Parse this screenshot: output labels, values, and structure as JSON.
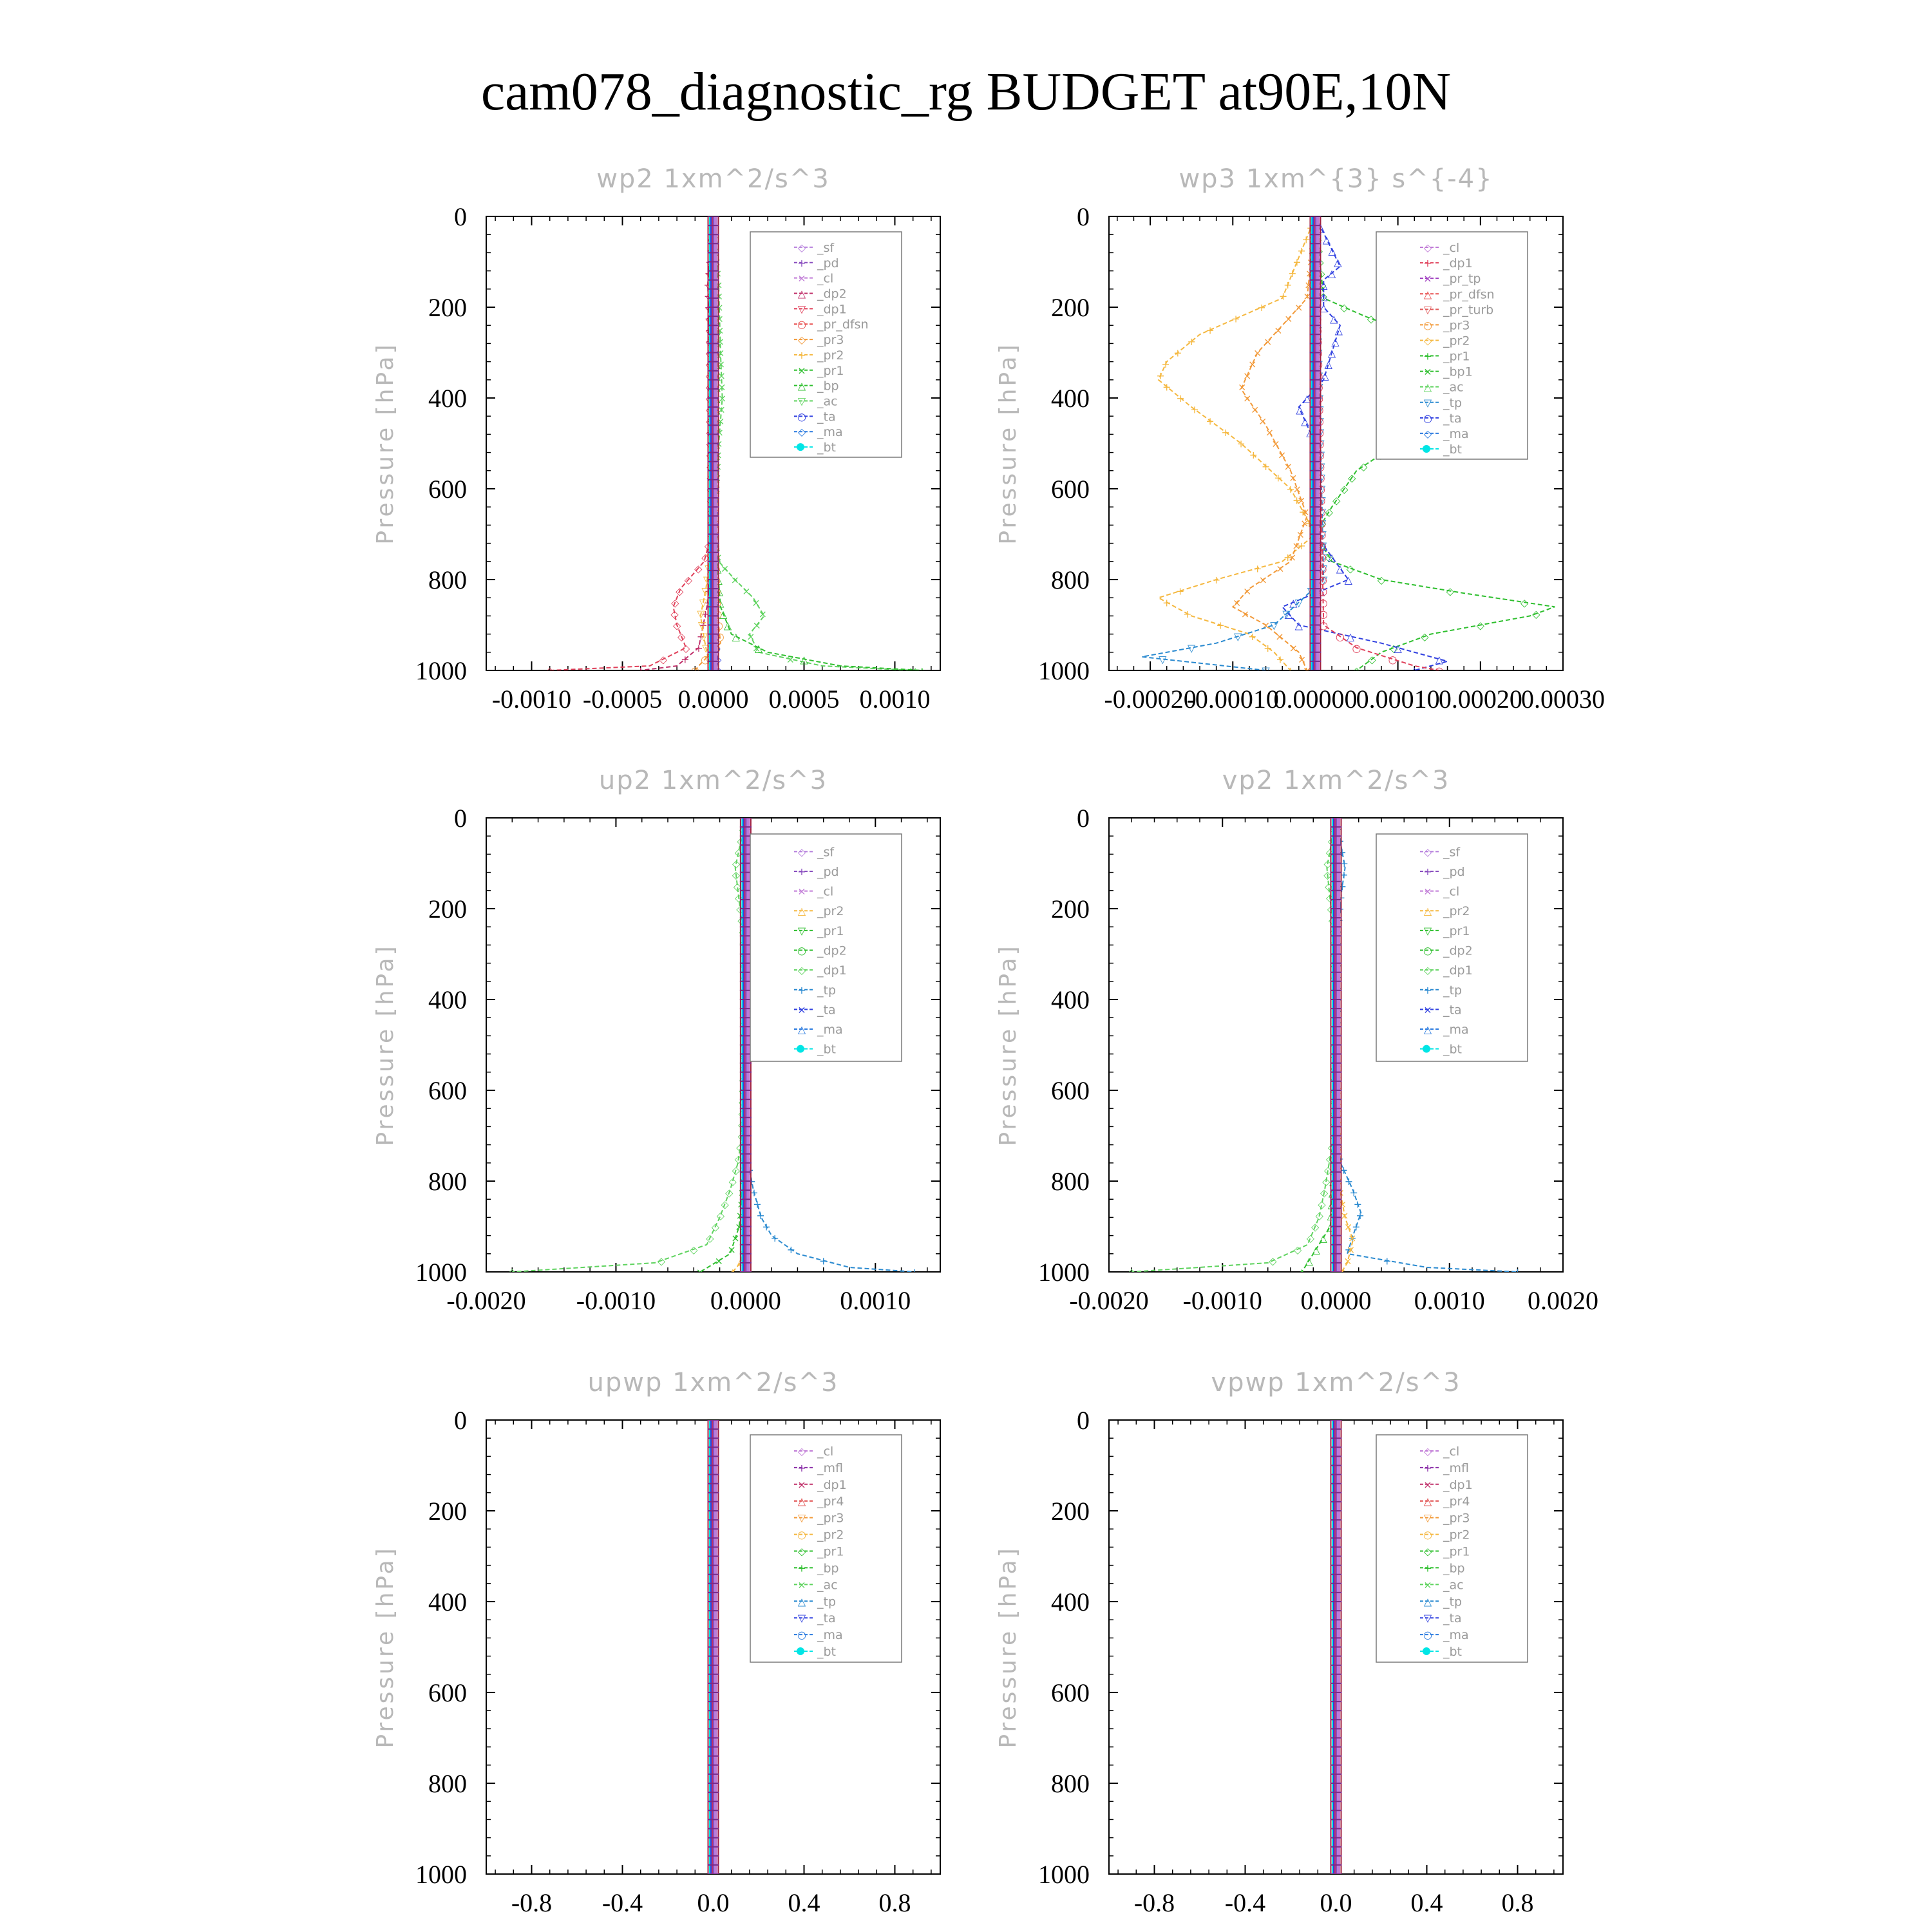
{
  "title": "cam078_diagnostic_rg  BUDGET at90E,10N",
  "colors": {
    "sf": "#b57edc",
    "pd": "#8a4fbf",
    "cl": "#c07ad6",
    "dp2": "#c0306a",
    "dp1": "#e0405a",
    "pr_dfsn": "#e85050",
    "pr3": "#f29a3a",
    "pr2": "#f5b840",
    "pr1": "#2fbf2f",
    "bp": "#2fbf2f",
    "ac": "#5fd35f",
    "tp": "#2a8ad0",
    "ta": "#3040e0",
    "ma": "#2a7adf",
    "bt": "#00e5e5",
    "mfl": "#8a2fa8",
    "pr4": "#e04848",
    "pr_tp": "#a040c0",
    "pr_turb": "#e05a5a",
    "frame": "#000000"
  },
  "chart_data": [
    {
      "type": "line",
      "title": "wp2   1xm^2/s^3",
      "ylabel": "Pressure [hPa]",
      "ylim": [
        1000,
        0
      ],
      "yticks": [
        "0",
        "200",
        "400",
        "600",
        "800",
        "1000"
      ],
      "xlim": [
        -0.00125,
        0.00125
      ],
      "xticks": [
        "-0.0010",
        "-0.0005",
        "0.0000",
        "0.0005",
        "0.0010"
      ],
      "xtick_values": [
        -0.001,
        -0.0005,
        0,
        0.0005,
        0.001
      ],
      "legend": [
        "_sf",
        "_pd",
        "_cl",
        "_dp2",
        "_dp1",
        "_pr_dfsn",
        "_pr3",
        "_pr2",
        "_pr1",
        "_bp",
        "_ac",
        "_ta",
        "_ma",
        "_bt"
      ],
      "legend_colors": [
        "sf",
        "pd",
        "cl",
        "dp2",
        "dp1",
        "pr_dfsn",
        "pr3",
        "pr2",
        "pr1",
        "bp",
        "ac",
        "ta",
        "ma",
        "bt"
      ],
      "series": [
        {
          "color": "dp1",
          "p": [
            0,
            150,
            400,
            700,
            760,
            820,
            860,
            900,
            950,
            990,
            1000
          ],
          "v": [
            0,
            -2e-05,
            -2e-05,
            -1e-05,
            -5e-05,
            -0.00018,
            -0.00022,
            -0.0002,
            -0.00015,
            -0.00035,
            -0.0009
          ]
        },
        {
          "color": "dp2",
          "p": [
            0,
            150,
            400,
            700,
            850,
            950,
            990,
            1000
          ],
          "v": [
            0,
            -3e-05,
            -1e-05,
            0,
            -3e-05,
            -8e-05,
            -0.0002,
            -0.0004
          ]
        },
        {
          "color": "ac",
          "p": [
            0,
            150,
            300,
            400,
            500,
            700,
            760,
            800,
            840,
            880,
            920,
            960,
            990,
            1000
          ],
          "v": [
            0,
            3e-05,
            4e-05,
            5e-05,
            3e-05,
            1e-05,
            3e-05,
            0.00012,
            0.00022,
            0.00028,
            0.0002,
            0.00025,
            0.0006,
            0.0011
          ]
        },
        {
          "color": "bp",
          "p": [
            0,
            300,
            700,
            860,
            920,
            960,
            990,
            1000
          ],
          "v": [
            0,
            2e-05,
            1e-05,
            4e-05,
            0.0001,
            0.0003,
            0.0007,
            0.00115
          ]
        },
        {
          "color": "pr2",
          "p": [
            0,
            700,
            820,
            880,
            930,
            970,
            1000
          ],
          "v": [
            0,
            0,
            -4e-05,
            -7e-05,
            -5e-05,
            -3e-05,
            -1e-05
          ]
        },
        {
          "color": "pr3",
          "p": [
            0,
            700,
            860,
            940,
            990,
            1000
          ],
          "v": [
            0,
            1e-05,
            2e-05,
            4e-05,
            -8e-05,
            -0.0001
          ]
        },
        {
          "color": "ta",
          "p": [
            0,
            900,
            960,
            1000
          ],
          "v": [
            0,
            1e-05,
            2e-05,
            3e-05
          ]
        }
      ]
    },
    {
      "type": "line",
      "title": "wp3   1xm^{3} s^{-4}",
      "ylabel": "Pressure [hPa]",
      "ylim": [
        1000,
        0
      ],
      "yticks": [
        "0",
        "200",
        "400",
        "600",
        "800",
        "1000"
      ],
      "xlim": [
        -0.00025,
        0.0003
      ],
      "xticks": [
        "-0.00020",
        "-0.00010",
        "0.00000",
        "0.00010",
        "0.00020",
        "0.00030"
      ],
      "xtick_values": [
        -0.0002,
        -0.0001,
        0,
        0.0001,
        0.0002,
        0.0003
      ],
      "legend": [
        "_cl",
        "_dp1",
        "_pr_tp",
        "_pr_dfsn",
        "_pr_turb",
        "_pr3",
        "_pr2",
        "_pr1",
        "_bp1",
        "_ac",
        "_tp",
        "_ta",
        "_ma",
        "_bt"
      ],
      "legend_colors": [
        "cl",
        "dp1",
        "pr_tp",
        "pr_dfsn",
        "pr_turb",
        "pr3",
        "pr2",
        "pr1",
        "bp",
        "ac",
        "tp",
        "ta",
        "ma",
        "bt"
      ],
      "series": [
        {
          "color": "bp",
          "p": [
            0,
            180,
            220,
            260,
            300,
            340,
            390,
            440,
            500,
            560,
            640,
            700,
            760,
            800,
            830,
            860,
            880,
            920,
            960,
            1000
          ],
          "v": [
            0,
            1e-05,
            6e-05,
            0.00012,
            0.00018,
            0.00023,
            0.00025,
            0.00018,
            0.0001,
            5e-05,
            2e-05,
            0,
            2e-05,
            8e-05,
            0.00018,
            0.00029,
            0.00026,
            0.00014,
            8e-05,
            5e-05
          ]
        },
        {
          "color": "pr2",
          "p": [
            0,
            180,
            220,
            260,
            320,
            360,
            420,
            500,
            600,
            700,
            760,
            800,
            840,
            880,
            920,
            960,
            1000
          ],
          "v": [
            0,
            -4e-05,
            -9e-05,
            -0.00014,
            -0.00018,
            -0.00019,
            -0.00015,
            -9e-05,
            -3e-05,
            0,
            -4e-05,
            -0.00012,
            -0.00019,
            -0.00015,
            -8e-05,
            -5e-05,
            -3e-05
          ]
        },
        {
          "color": "pr3",
          "p": [
            0,
            180,
            240,
            300,
            380,
            460,
            560,
            660,
            760,
            820,
            860,
            900,
            960,
            1000
          ],
          "v": [
            0,
            -1e-05,
            -4e-05,
            -7e-05,
            -9e-05,
            -6e-05,
            -3e-05,
            -1e-05,
            -3e-05,
            -8e-05,
            -0.0001,
            -6e-05,
            -2e-05,
            -1e-05
          ]
        },
        {
          "color": "ta",
          "p": [
            0,
            110,
            140,
            200,
            240,
            300,
            360,
            420,
            500,
            700,
            800,
            860,
            900,
            940,
            980,
            1000
          ],
          "v": [
            0,
            3e-05,
            1e-05,
            1e-05,
            3e-05,
            2e-05,
            1e-05,
            -2e-05,
            0,
            0,
            4e-05,
            -4e-05,
            -2e-05,
            8e-05,
            0.00016,
            0.00012
          ]
        },
        {
          "color": "tp",
          "p": [
            0,
            800,
            900,
            940,
            970,
            1000
          ],
          "v": [
            0,
            1e-05,
            -5e-05,
            -0.00012,
            -0.00021,
            -6e-05
          ]
        },
        {
          "color": "dp1",
          "p": [
            0,
            900,
            950,
            990,
            1000
          ],
          "v": [
            0,
            1e-05,
            5e-05,
            0.00012,
            0.00015
          ]
        }
      ]
    },
    {
      "type": "line",
      "title": "up2   1xm^2/s^3",
      "ylabel": "Pressure [hPa]",
      "ylim": [
        1000,
        0
      ],
      "yticks": [
        "0",
        "200",
        "400",
        "600",
        "800",
        "1000"
      ],
      "xlim": [
        -0.002,
        0.0015
      ],
      "xticks": [
        "-0.0020",
        "-0.0010",
        "0.0000",
        "0.0010"
      ],
      "xtick_values": [
        -0.002,
        -0.001,
        0,
        0.001
      ],
      "legend": [
        "_sf",
        "_pd",
        "_cl",
        "_pr2",
        "_pr1",
        "_dp2",
        "_dp1",
        "_tp",
        "_ta",
        "_ma",
        "_bt"
      ],
      "legend_colors": [
        "sf",
        "pd",
        "cl",
        "pr2",
        "pr1",
        "bp",
        "ac",
        "tp",
        "ta",
        "ma",
        "bt"
      ],
      "series": [
        {
          "color": "ac",
          "p": [
            0,
            110,
            160,
            250,
            400,
            700,
            760,
            820,
            880,
            940,
            980,
            1000
          ],
          "v": [
            0,
            -8e-05,
            -6e-05,
            -2e-05,
            0,
            -3e-05,
            -6e-05,
            -0.00012,
            -0.0002,
            -0.0003,
            -0.0007,
            -0.0018
          ]
        },
        {
          "color": "tp",
          "p": [
            0,
            110,
            160,
            250,
            700,
            760,
            820,
            880,
            920,
            960,
            990,
            1000
          ],
          "v": [
            0,
            8e-05,
            6e-05,
            2e-05,
            0,
            2e-05,
            6e-05,
            0.00012,
            0.0002,
            0.0004,
            0.0008,
            0.0013
          ]
        },
        {
          "color": "pr1",
          "p": [
            0,
            700,
            900,
            960,
            1000
          ],
          "v": [
            0,
            1e-05,
            -5e-05,
            -0.00012,
            -0.00035
          ]
        },
        {
          "color": "pr2",
          "p": [
            0,
            700,
            920,
            980,
            1000
          ],
          "v": [
            0,
            0,
            1e-05,
            -4e-05,
            -0.0001
          ]
        }
      ]
    },
    {
      "type": "line",
      "title": "vp2   1xm^2/s^3",
      "ylabel": "Pressure [hPa]",
      "ylim": [
        1000,
        0
      ],
      "yticks": [
        "0",
        "200",
        "400",
        "600",
        "800",
        "1000"
      ],
      "xlim": [
        -0.002,
        0.002
      ],
      "xticks": [
        "-0.0020",
        "-0.0010",
        "0.0000",
        "0.0010",
        "0.0020"
      ],
      "xtick_values": [
        -0.002,
        -0.001,
        0,
        0.001,
        0.002
      ],
      "legend": [
        "_sf",
        "_pd",
        "_cl",
        "_pr2",
        "_pr1",
        "_dp2",
        "_dp1",
        "_tp",
        "_ta",
        "_ma",
        "_bt"
      ],
      "legend_colors": [
        "sf",
        "pd",
        "cl",
        "pr2",
        "pr1",
        "bp",
        "ac",
        "tp",
        "ta",
        "ma",
        "bt"
      ],
      "series": [
        {
          "color": "ac",
          "p": [
            0,
            110,
            160,
            250,
            400,
            700,
            760,
            820,
            880,
            940,
            980,
            1000
          ],
          "v": [
            0,
            -8e-05,
            -6e-05,
            -2e-05,
            0,
            -2e-05,
            -6e-05,
            -0.0001,
            -0.00015,
            -0.00025,
            -0.0006,
            -0.0018
          ]
        },
        {
          "color": "tp",
          "p": [
            0,
            110,
            160,
            250,
            700,
            760,
            820,
            870,
            920,
            960,
            990,
            1000
          ],
          "v": [
            0,
            8e-05,
            5e-05,
            2e-05,
            0,
            4e-05,
            0.00015,
            0.00022,
            0.00015,
            0.0001,
            0.0008,
            0.0016
          ]
        },
        {
          "color": "pr2",
          "p": [
            0,
            800,
            880,
            930,
            980,
            1000
          ],
          "v": [
            0,
            2e-05,
            8e-05,
            0.00015,
            0.0001,
            5e-05
          ]
        },
        {
          "color": "pr1",
          "p": [
            0,
            700,
            900,
            1000
          ],
          "v": [
            0,
            0,
            -5e-05,
            -0.0003
          ]
        }
      ]
    },
    {
      "type": "line",
      "title": "upwp   1xm^2/s^3",
      "ylabel": "Pressure [hPa]",
      "ylim": [
        1000,
        0
      ],
      "yticks": [
        "0",
        "200",
        "400",
        "600",
        "800",
        "1000"
      ],
      "xlim": [
        -1,
        1
      ],
      "xticks": [
        "-0.8",
        "-0.4",
        "0.0",
        "0.4",
        "0.8"
      ],
      "xtick_values": [
        -0.8,
        -0.4,
        0,
        0.4,
        0.8
      ],
      "legend": [
        "_cl",
        "_mfl",
        "_dp1",
        "_pr4",
        "_pr3",
        "_pr2",
        "_pr1",
        "_bp",
        "_ac",
        "_tp",
        "_ta",
        "_ma",
        "_bt"
      ],
      "legend_colors": [
        "cl",
        "mfl",
        "dp2",
        "pr4",
        "pr3",
        "pr2",
        "pr1",
        "bp",
        "ac",
        "tp",
        "ta",
        "ma",
        "bt"
      ],
      "series": []
    },
    {
      "type": "line",
      "title": "vpwp   1xm^2/s^3",
      "ylabel": "Pressure [hPa]",
      "ylim": [
        1000,
        0
      ],
      "yticks": [
        "0",
        "200",
        "400",
        "600",
        "800",
        "1000"
      ],
      "xlim": [
        -1,
        1
      ],
      "xticks": [
        "-0.8",
        "-0.4",
        "0.0",
        "0.4",
        "0.8"
      ],
      "xtick_values": [
        -0.8,
        -0.4,
        0,
        0.4,
        0.8
      ],
      "legend": [
        "_cl",
        "_mfl",
        "_dp1",
        "_pr4",
        "_pr3",
        "_pr2",
        "_pr1",
        "_bp",
        "_ac",
        "_tp",
        "_ta",
        "_ma",
        "_bt"
      ],
      "legend_colors": [
        "cl",
        "mfl",
        "dp2",
        "pr4",
        "pr3",
        "pr2",
        "pr1",
        "bp",
        "ac",
        "tp",
        "ta",
        "ma",
        "bt"
      ],
      "series": []
    }
  ]
}
